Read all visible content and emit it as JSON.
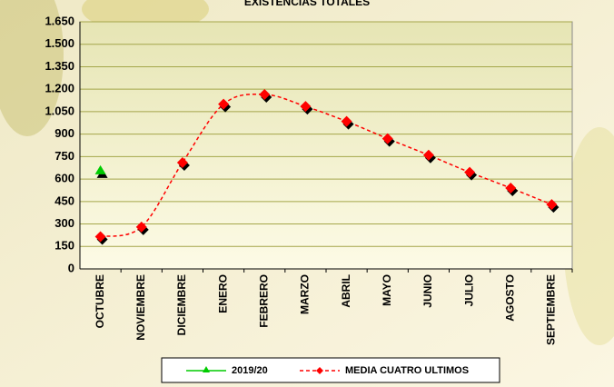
{
  "chart_data": {
    "type": "line",
    "title": "EXISTENCIAS TOTALES",
    "categories": [
      "OCTUBRE",
      "NOVIEMBRE",
      "DICIEMBRE",
      "ENERO",
      "FEBRERO",
      "MARZO",
      "ABRIL",
      "MAYO",
      "JUNIO",
      "JULIO",
      "AGOSTO",
      "SEPTIEMBRE"
    ],
    "series": [
      {
        "name": "2019/20",
        "color": "#00cc00",
        "marker": "triangle",
        "smooth": false,
        "dashed": false,
        "values": [
          650,
          null,
          null,
          null,
          null,
          null,
          null,
          null,
          null,
          null,
          null,
          null
        ]
      },
      {
        "name": "MEDIA CUATRO ULTIMOS",
        "color": "#ff0000",
        "marker": "diamond",
        "smooth": true,
        "dashed": true,
        "values": [
          215,
          280,
          710,
          1100,
          1165,
          1085,
          985,
          870,
          760,
          645,
          540,
          430
        ]
      }
    ],
    "ylim": [
      0,
      1650
    ],
    "yticks": [
      0,
      150,
      300,
      450,
      600,
      750,
      900,
      {
        "value": 1050,
        "label": "1.050"
      },
      {
        "value": 1200,
        "label": "1.200"
      },
      {
        "value": 1350,
        "label": "1.350"
      },
      {
        "value": 1500,
        "label": "1.500"
      },
      {
        "value": 1650,
        "label": "1.650"
      }
    ],
    "grid": true,
    "legend": "bottom"
  }
}
